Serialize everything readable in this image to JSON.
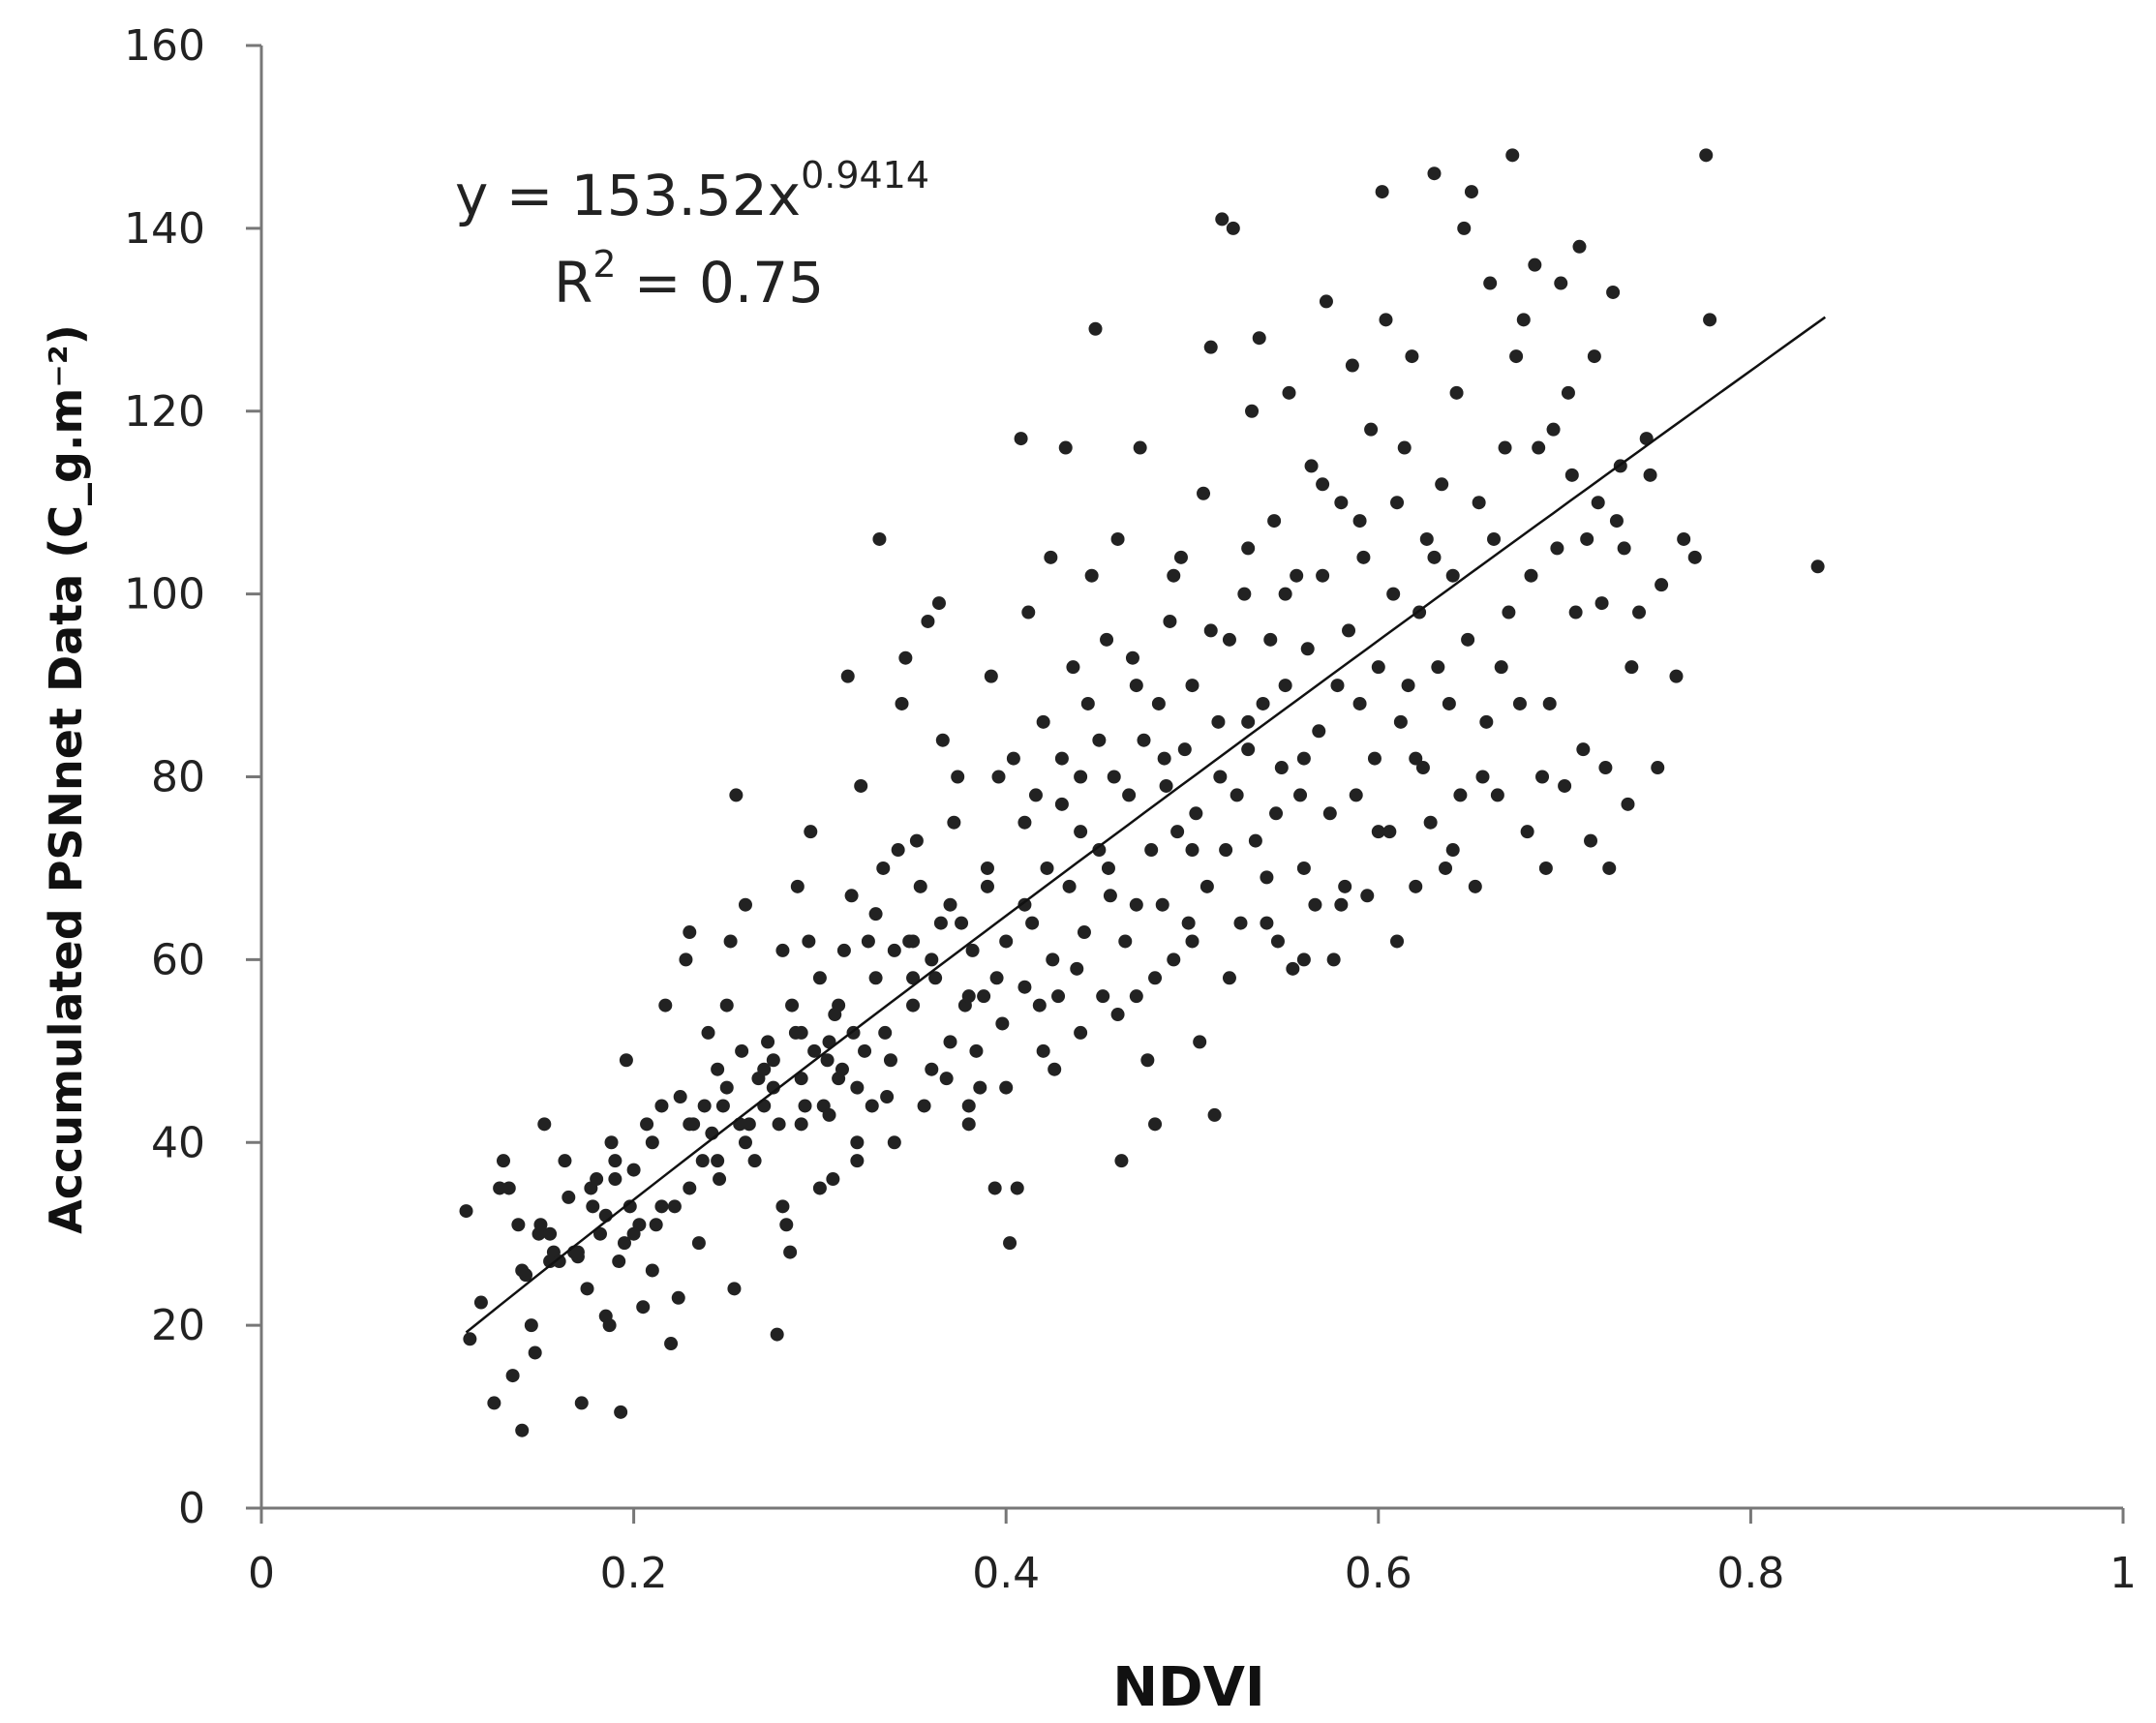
{
  "chart_data": {
    "type": "scatter",
    "title": "",
    "xlabel": "NDVI",
    "ylabel": "Accumulated PSNnet Data (C_g.m⁻²)",
    "xlim": [
      0,
      1
    ],
    "ylim": [
      0,
      160
    ],
    "x_ticks": [
      "0",
      "0.2",
      "0.4",
      "0.6",
      "0.8",
      "1"
    ],
    "y_ticks": [
      "0",
      "20",
      "40",
      "60",
      "80",
      "100",
      "120",
      "140",
      "160"
    ],
    "grid": false,
    "legend": "none",
    "marker_color": "#222222",
    "trendline": {
      "type": "power",
      "a": 153.52,
      "b": 0.9414,
      "x_range": [
        0.11,
        0.84
      ],
      "equation_prefix": "y = 153.52x",
      "equation_exponent": "0.9414",
      "r2_prefix": "R",
      "r2_exponent": "2",
      "r2_suffix": " = 0.75"
    },
    "points": [
      [
        0.11,
        32.5
      ],
      [
        0.112,
        18.5
      ],
      [
        0.118,
        22.5
      ],
      [
        0.125,
        11.5
      ],
      [
        0.128,
        35
      ],
      [
        0.13,
        38
      ],
      [
        0.133,
        35
      ],
      [
        0.135,
        14.5
      ],
      [
        0.138,
        31
      ],
      [
        0.14,
        8.5
      ],
      [
        0.142,
        25.5
      ],
      [
        0.145,
        20
      ],
      [
        0.147,
        17
      ],
      [
        0.149,
        30
      ],
      [
        0.15,
        31
      ],
      [
        0.152,
        42
      ],
      [
        0.155,
        27
      ],
      [
        0.157,
        28
      ],
      [
        0.16,
        27
      ],
      [
        0.163,
        38
      ],
      [
        0.165,
        34
      ],
      [
        0.168,
        28
      ],
      [
        0.17,
        27.5
      ],
      [
        0.172,
        11.5
      ],
      [
        0.175,
        24
      ],
      [
        0.177,
        35
      ],
      [
        0.178,
        33
      ],
      [
        0.18,
        36
      ],
      [
        0.182,
        30
      ],
      [
        0.185,
        21
      ],
      [
        0.187,
        20
      ],
      [
        0.188,
        40
      ],
      [
        0.19,
        38
      ],
      [
        0.192,
        27
      ],
      [
        0.193,
        10.5
      ],
      [
        0.195,
        29
      ],
      [
        0.196,
        49
      ],
      [
        0.198,
        33
      ],
      [
        0.2,
        37
      ],
      [
        0.203,
        31
      ],
      [
        0.205,
        22
      ],
      [
        0.207,
        42
      ],
      [
        0.21,
        26
      ],
      [
        0.212,
        31
      ],
      [
        0.215,
        44
      ],
      [
        0.217,
        55
      ],
      [
        0.22,
        18
      ],
      [
        0.222,
        33
      ],
      [
        0.224,
        23
      ],
      [
        0.225,
        45
      ],
      [
        0.228,
        60
      ],
      [
        0.23,
        63
      ],
      [
        0.232,
        42
      ],
      [
        0.235,
        29
      ],
      [
        0.237,
        38
      ],
      [
        0.238,
        44
      ],
      [
        0.24,
        52
      ],
      [
        0.242,
        41
      ],
      [
        0.245,
        48
      ],
      [
        0.246,
        36
      ],
      [
        0.248,
        44
      ],
      [
        0.25,
        55
      ],
      [
        0.252,
        62
      ],
      [
        0.254,
        24
      ],
      [
        0.255,
        78
      ],
      [
        0.257,
        42
      ],
      [
        0.258,
        50
      ],
      [
        0.26,
        66
      ],
      [
        0.262,
        42
      ],
      [
        0.265,
        38
      ],
      [
        0.267,
        47
      ],
      [
        0.27,
        44
      ],
      [
        0.272,
        51
      ],
      [
        0.275,
        49
      ],
      [
        0.277,
        19
      ],
      [
        0.278,
        42
      ],
      [
        0.28,
        61
      ],
      [
        0.282,
        31
      ],
      [
        0.284,
        28
      ],
      [
        0.285,
        55
      ],
      [
        0.287,
        52
      ],
      [
        0.288,
        68
      ],
      [
        0.29,
        47
      ],
      [
        0.292,
        44
      ],
      [
        0.294,
        62
      ],
      [
        0.295,
        74
      ],
      [
        0.297,
        50
      ],
      [
        0.3,
        58
      ],
      [
        0.302,
        44
      ],
      [
        0.304,
        49
      ],
      [
        0.305,
        43
      ],
      [
        0.307,
        36
      ],
      [
        0.308,
        54
      ],
      [
        0.31,
        47
      ],
      [
        0.312,
        48
      ],
      [
        0.313,
        61
      ],
      [
        0.315,
        91
      ],
      [
        0.317,
        67
      ],
      [
        0.318,
        52
      ],
      [
        0.32,
        40
      ],
      [
        0.322,
        79
      ],
      [
        0.324,
        50
      ],
      [
        0.326,
        62
      ],
      [
        0.328,
        44
      ],
      [
        0.33,
        65
      ],
      [
        0.332,
        106
      ],
      [
        0.334,
        70
      ],
      [
        0.336,
        45
      ],
      [
        0.338,
        49
      ],
      [
        0.34,
        61
      ],
      [
        0.342,
        72
      ],
      [
        0.344,
        88
      ],
      [
        0.346,
        93
      ],
      [
        0.348,
        62
      ],
      [
        0.35,
        55
      ],
      [
        0.352,
        73
      ],
      [
        0.354,
        68
      ],
      [
        0.356,
        44
      ],
      [
        0.358,
        97
      ],
      [
        0.36,
        60
      ],
      [
        0.362,
        58
      ],
      [
        0.364,
        99
      ],
      [
        0.366,
        84
      ],
      [
        0.368,
        47
      ],
      [
        0.37,
        51
      ],
      [
        0.372,
        75
      ],
      [
        0.374,
        80
      ],
      [
        0.376,
        64
      ],
      [
        0.378,
        55
      ],
      [
        0.38,
        42
      ],
      [
        0.382,
        61
      ],
      [
        0.384,
        50
      ],
      [
        0.386,
        46
      ],
      [
        0.388,
        56
      ],
      [
        0.39,
        68
      ],
      [
        0.392,
        91
      ],
      [
        0.394,
        35
      ],
      [
        0.396,
        80
      ],
      [
        0.398,
        53
      ],
      [
        0.4,
        62
      ],
      [
        0.402,
        29
      ],
      [
        0.404,
        82
      ],
      [
        0.406,
        35
      ],
      [
        0.408,
        117
      ],
      [
        0.41,
        57
      ],
      [
        0.412,
        98
      ],
      [
        0.414,
        64
      ],
      [
        0.416,
        78
      ],
      [
        0.418,
        55
      ],
      [
        0.42,
        86
      ],
      [
        0.422,
        70
      ],
      [
        0.424,
        104
      ],
      [
        0.426,
        48
      ],
      [
        0.428,
        56
      ],
      [
        0.43,
        77
      ],
      [
        0.432,
        116
      ],
      [
        0.434,
        68
      ],
      [
        0.436,
        92
      ],
      [
        0.438,
        59
      ],
      [
        0.44,
        80
      ],
      [
        0.442,
        63
      ],
      [
        0.444,
        88
      ],
      [
        0.446,
        102
      ],
      [
        0.448,
        129
      ],
      [
        0.45,
        72
      ],
      [
        0.452,
        56
      ],
      [
        0.454,
        95
      ],
      [
        0.456,
        67
      ],
      [
        0.458,
        80
      ],
      [
        0.46,
        106
      ],
      [
        0.462,
        38
      ],
      [
        0.464,
        62
      ],
      [
        0.466,
        78
      ],
      [
        0.468,
        93
      ],
      [
        0.47,
        56
      ],
      [
        0.472,
        116
      ],
      [
        0.474,
        84
      ],
      [
        0.476,
        49
      ],
      [
        0.478,
        72
      ],
      [
        0.48,
        42
      ],
      [
        0.482,
        88
      ],
      [
        0.484,
        66
      ],
      [
        0.486,
        79
      ],
      [
        0.488,
        97
      ],
      [
        0.49,
        60
      ],
      [
        0.492,
        74
      ],
      [
        0.494,
        104
      ],
      [
        0.496,
        83
      ],
      [
        0.498,
        64
      ],
      [
        0.5,
        90
      ],
      [
        0.502,
        76
      ],
      [
        0.504,
        51
      ],
      [
        0.506,
        111
      ],
      [
        0.508,
        68
      ],
      [
        0.51,
        127
      ],
      [
        0.512,
        43
      ],
      [
        0.514,
        86
      ],
      [
        0.516,
        141
      ],
      [
        0.518,
        72
      ],
      [
        0.52,
        95
      ],
      [
        0.522,
        140
      ],
      [
        0.524,
        78
      ],
      [
        0.526,
        64
      ],
      [
        0.528,
        100
      ],
      [
        0.53,
        83
      ],
      [
        0.532,
        120
      ],
      [
        0.534,
        73
      ],
      [
        0.536,
        128
      ],
      [
        0.538,
        88
      ],
      [
        0.54,
        69
      ],
      [
        0.542,
        95
      ],
      [
        0.544,
        108
      ],
      [
        0.546,
        62
      ],
      [
        0.548,
        81
      ],
      [
        0.55,
        90
      ],
      [
        0.552,
        122
      ],
      [
        0.554,
        59
      ],
      [
        0.556,
        102
      ],
      [
        0.558,
        78
      ],
      [
        0.56,
        70
      ],
      [
        0.562,
        94
      ],
      [
        0.564,
        114
      ],
      [
        0.566,
        66
      ],
      [
        0.568,
        85
      ],
      [
        0.57,
        102
      ],
      [
        0.572,
        132
      ],
      [
        0.574,
        76
      ],
      [
        0.576,
        60
      ],
      [
        0.578,
        90
      ],
      [
        0.58,
        110
      ],
      [
        0.582,
        68
      ],
      [
        0.584,
        96
      ],
      [
        0.586,
        125
      ],
      [
        0.588,
        78
      ],
      [
        0.59,
        88
      ],
      [
        0.592,
        104
      ],
      [
        0.594,
        67
      ],
      [
        0.596,
        118
      ],
      [
        0.598,
        82
      ],
      [
        0.6,
        92
      ],
      [
        0.602,
        144
      ],
      [
        0.604,
        130
      ],
      [
        0.606,
        74
      ],
      [
        0.608,
        100
      ],
      [
        0.61,
        62
      ],
      [
        0.612,
        86
      ],
      [
        0.614,
        116
      ],
      [
        0.616,
        90
      ],
      [
        0.618,
        126
      ],
      [
        0.62,
        68
      ],
      [
        0.622,
        98
      ],
      [
        0.624,
        81
      ],
      [
        0.626,
        106
      ],
      [
        0.628,
        75
      ],
      [
        0.63,
        146
      ],
      [
        0.632,
        92
      ],
      [
        0.634,
        112
      ],
      [
        0.636,
        70
      ],
      [
        0.638,
        88
      ],
      [
        0.64,
        102
      ],
      [
        0.642,
        122
      ],
      [
        0.644,
        78
      ],
      [
        0.646,
        140
      ],
      [
        0.648,
        95
      ],
      [
        0.65,
        144
      ],
      [
        0.652,
        68
      ],
      [
        0.654,
        110
      ],
      [
        0.656,
        80
      ],
      [
        0.658,
        86
      ],
      [
        0.66,
        134
      ],
      [
        0.662,
        106
      ],
      [
        0.664,
        78
      ],
      [
        0.666,
        92
      ],
      [
        0.668,
        116
      ],
      [
        0.67,
        98
      ],
      [
        0.672,
        148
      ],
      [
        0.674,
        126
      ],
      [
        0.676,
        88
      ],
      [
        0.678,
        130
      ],
      [
        0.68,
        74
      ],
      [
        0.682,
        102
      ],
      [
        0.684,
        136
      ],
      [
        0.686,
        116
      ],
      [
        0.688,
        80
      ],
      [
        0.69,
        70
      ],
      [
        0.692,
        88
      ],
      [
        0.694,
        118
      ],
      [
        0.696,
        105
      ],
      [
        0.698,
        134
      ],
      [
        0.7,
        79
      ],
      [
        0.702,
        122
      ],
      [
        0.704,
        113
      ],
      [
        0.706,
        98
      ],
      [
        0.708,
        138
      ],
      [
        0.71,
        83
      ],
      [
        0.712,
        106
      ],
      [
        0.714,
        73
      ],
      [
        0.716,
        126
      ],
      [
        0.718,
        110
      ],
      [
        0.72,
        99
      ],
      [
        0.722,
        81
      ],
      [
        0.724,
        70
      ],
      [
        0.726,
        133
      ],
      [
        0.728,
        108
      ],
      [
        0.73,
        114
      ],
      [
        0.732,
        105
      ],
      [
        0.734,
        77
      ],
      [
        0.736,
        92
      ],
      [
        0.74,
        98
      ],
      [
        0.744,
        117
      ],
      [
        0.746,
        113
      ],
      [
        0.75,
        81
      ],
      [
        0.752,
        101
      ],
      [
        0.76,
        91
      ],
      [
        0.764,
        106
      ],
      [
        0.77,
        104
      ],
      [
        0.776,
        148
      ],
      [
        0.778,
        130
      ],
      [
        0.836,
        103
      ],
      [
        0.56,
        82
      ],
      [
        0.545,
        76
      ],
      [
        0.53,
        86
      ],
      [
        0.515,
        80
      ],
      [
        0.5,
        72
      ],
      [
        0.485,
        82
      ],
      [
        0.47,
        66
      ],
      [
        0.455,
        70
      ],
      [
        0.44,
        74
      ],
      [
        0.425,
        60
      ],
      [
        0.41,
        66
      ],
      [
        0.395,
        58
      ],
      [
        0.38,
        56
      ],
      [
        0.365,
        64
      ],
      [
        0.35,
        58
      ],
      [
        0.335,
        52
      ],
      [
        0.32,
        46
      ],
      [
        0.305,
        51
      ],
      [
        0.29,
        42
      ],
      [
        0.275,
        46
      ],
      [
        0.26,
        40
      ],
      [
        0.245,
        38
      ],
      [
        0.23,
        35
      ],
      [
        0.215,
        33
      ],
      [
        0.2,
        30
      ],
      [
        0.185,
        32
      ],
      [
        0.17,
        28
      ],
      [
        0.155,
        30
      ],
      [
        0.14,
        26
      ],
      [
        0.49,
        102
      ],
      [
        0.51,
        96
      ],
      [
        0.53,
        105
      ],
      [
        0.55,
        100
      ],
      [
        0.57,
        112
      ],
      [
        0.59,
        108
      ],
      [
        0.61,
        110
      ],
      [
        0.63,
        104
      ],
      [
        0.47,
        90
      ],
      [
        0.45,
        84
      ],
      [
        0.43,
        82
      ],
      [
        0.41,
        75
      ],
      [
        0.39,
        70
      ],
      [
        0.37,
        66
      ],
      [
        0.35,
        62
      ],
      [
        0.33,
        58
      ],
      [
        0.31,
        55
      ],
      [
        0.29,
        52
      ],
      [
        0.27,
        48
      ],
      [
        0.25,
        46
      ],
      [
        0.23,
        42
      ],
      [
        0.21,
        40
      ],
      [
        0.19,
        36
      ],
      [
        0.6,
        74
      ],
      [
        0.62,
        82
      ],
      [
        0.64,
        72
      ],
      [
        0.58,
        66
      ],
      [
        0.56,
        60
      ],
      [
        0.54,
        64
      ],
      [
        0.52,
        58
      ],
      [
        0.5,
        62
      ],
      [
        0.48,
        58
      ],
      [
        0.46,
        54
      ],
      [
        0.44,
        52
      ],
      [
        0.42,
        50
      ],
      [
        0.4,
        46
      ],
      [
        0.38,
        44
      ],
      [
        0.36,
        48
      ],
      [
        0.34,
        40
      ],
      [
        0.32,
        38
      ],
      [
        0.3,
        35
      ],
      [
        0.28,
        33
      ]
    ]
  }
}
